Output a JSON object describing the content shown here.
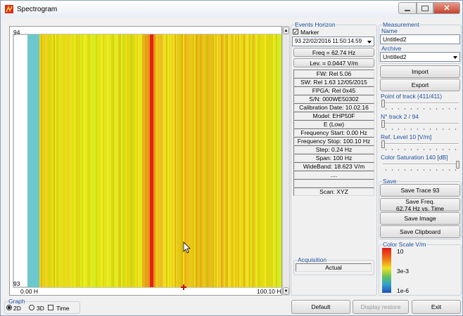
{
  "window": {
    "title": "Spectrogram"
  },
  "plot": {
    "y_top": "94",
    "y_bottom": "93",
    "x_start": "0.00 H",
    "x_end": "100.10 H"
  },
  "events": {
    "title": "Events Horizon",
    "marker": "Marker",
    "selected": "93  22/02/2016 11:50:14.59",
    "freq": "Freq = 62.74 Hz",
    "level": "Lev. = 0.0447 V/m",
    "info": [
      "FW: Rel 5.06",
      "SW: Rel 1.63 12/05/2015",
      "FPGA: Rel 0x45",
      "S/N: 000WE50302",
      "Calibration Date: 10.02.16",
      "Model: EHP50F",
      "E (Low)",
      "Frequency Start: 0.00 Hz",
      "Frequency Stop: 100.10 Hz",
      "Step: 0.24 Hz",
      "Span: 100 Hz",
      "WideBand: 18.623 V/m",
      "....",
      "Scan: XYZ"
    ],
    "acquisition": {
      "title": "Acquisition",
      "value": "Actual"
    }
  },
  "measurement": {
    "title": "Measurement",
    "name_label": "Name",
    "name": "Untitled2",
    "archive_label": "Archive",
    "archive": "Untitled2",
    "import": "Import",
    "export": "Export"
  },
  "sliders": [
    "Point of track (411/411)",
    "N° track 2 / 94",
    "Ref. Level 10 [V/m]",
    "Color Saturation 140 [dB]"
  ],
  "save": {
    "title": "Save",
    "trace": "Save Trace 93",
    "freq": [
      "Save Freq.",
      "62.74 Hz vs. Time"
    ],
    "image": "Save Image",
    "clipboard": "Save Clipboard"
  },
  "color_scale": {
    "title": "Color Scale V/m",
    "labels": [
      "10",
      "3e-3",
      "1e-6"
    ]
  },
  "graph": {
    "title": "Graph",
    "options": [
      "2D",
      "3D"
    ],
    "time": "Time"
  },
  "footer": {
    "default": "Default",
    "restore": "Display restore",
    "exit": "Exit"
  }
}
